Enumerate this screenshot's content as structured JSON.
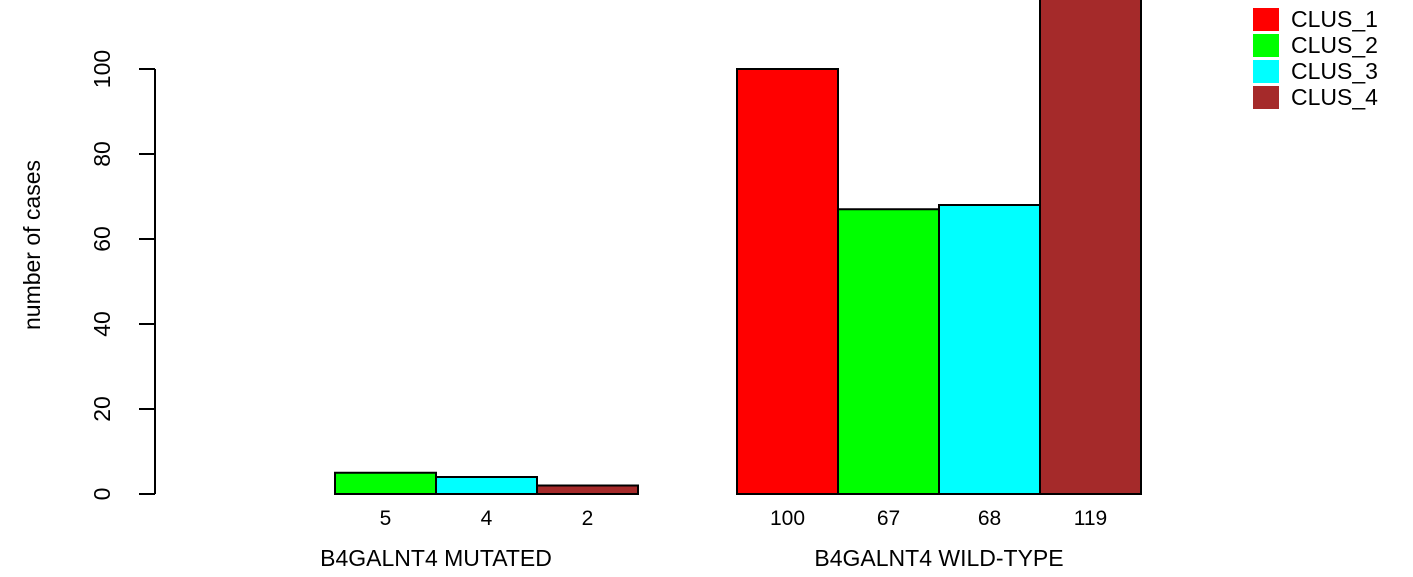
{
  "chart_data": {
    "type": "bar",
    "ylabel": "number of cases",
    "ylim": [
      0,
      100
    ],
    "yticks": [
      0,
      20,
      40,
      60,
      80,
      100
    ],
    "groups": [
      {
        "name": "B4GALNT4 MUTATED",
        "values": [
          0,
          5,
          4,
          2
        ],
        "value_labels": [
          "",
          "5",
          "4",
          "2"
        ]
      },
      {
        "name": "B4GALNT4 WILD-TYPE",
        "values": [
          100,
          67,
          68,
          119
        ],
        "value_labels": [
          "100",
          "67",
          "68",
          "119"
        ]
      }
    ],
    "series": [
      {
        "name": "CLUS_1",
        "color": "#ff0000"
      },
      {
        "name": "CLUS_2",
        "color": "#00ff00"
      },
      {
        "name": "CLUS_3",
        "color": "#00ffff"
      },
      {
        "name": "CLUS_4",
        "color": "#a52a2a"
      }
    ],
    "legend_position": "top-right",
    "grid": false
  }
}
